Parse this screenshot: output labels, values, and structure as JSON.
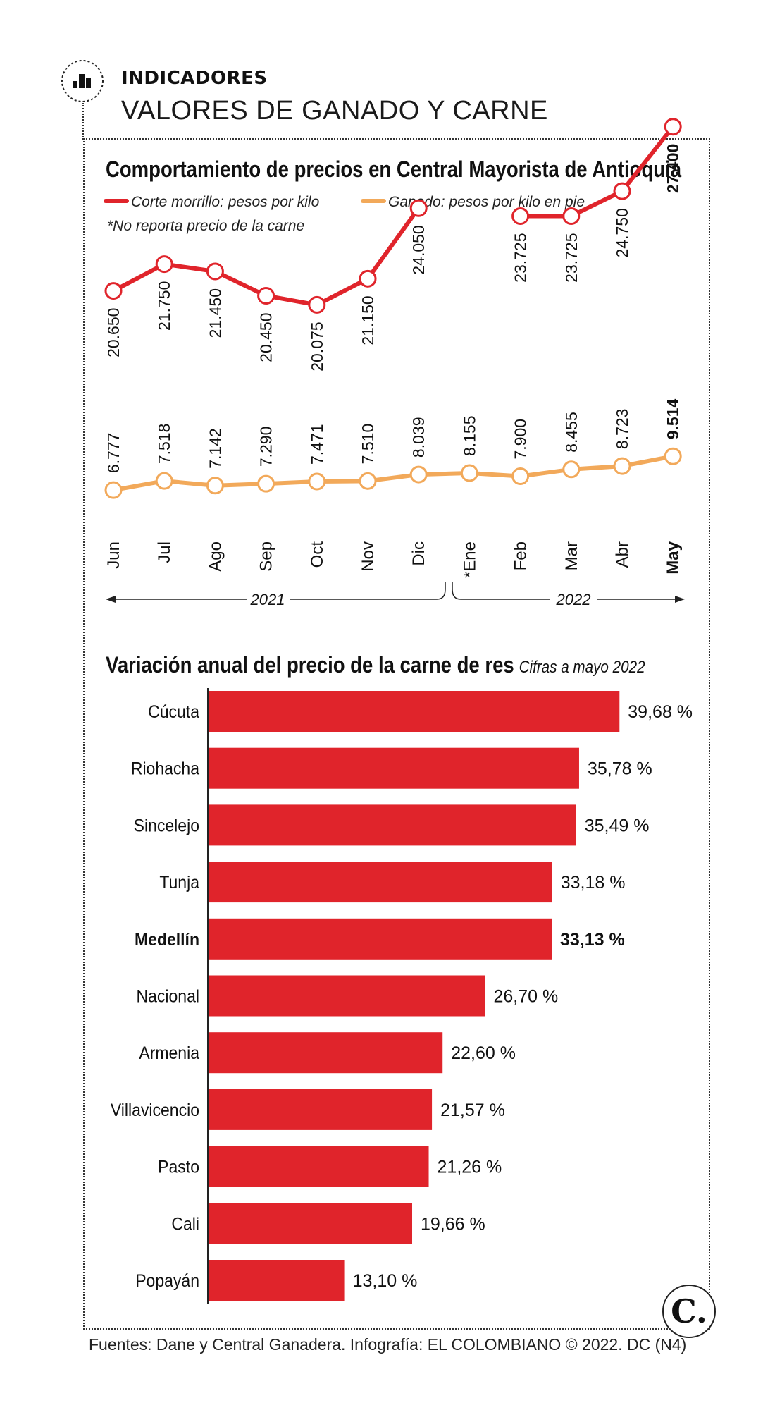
{
  "kicker": "INDICADORES",
  "headline": "VALORES DE GANADO Y CARNE",
  "source": "Fuentes: Dane y Central Ganadera. Infografía: EL COLOMBIANO © 2022. DC (N4)",
  "logo": "C.",
  "icon": "bar-chart-icon",
  "colors": {
    "red": "#e0242b",
    "orange": "#f2a95a",
    "bar": "#e0242b"
  },
  "chart_data": [
    {
      "type": "line",
      "title": "Comportamiento de precios en Central Mayorista de Antioquia",
      "note": "*No reporta precio de la carne",
      "categories": [
        "Jun",
        "Jul",
        "Ago",
        "Sep",
        "Oct",
        "Nov",
        "Dic",
        "*Ene",
        "Feb",
        "Mar",
        "Abr",
        "May"
      ],
      "years": [
        {
          "label": "2021",
          "from": "Jun",
          "to": "Dic"
        },
        {
          "label": "2022",
          "from": "*Ene",
          "to": "May"
        }
      ],
      "series": [
        {
          "name": "Corte morrillo: pesos por kilo",
          "color": "#e0242b",
          "values": [
            20650,
            21750,
            21450,
            20450,
            20075,
            21150,
            24050,
            null,
            23725,
            23725,
            24750,
            27400
          ],
          "labels": [
            "20.650",
            "21.750",
            "21.450",
            "20.450",
            "20.075",
            "21.150",
            "24.050",
            "",
            "23.725",
            "23.725",
            "24.750",
            "27.400"
          ]
        },
        {
          "name": "Ganado: pesos por kilo en pie",
          "color": "#f2a95a",
          "values": [
            6777,
            7518,
            7142,
            7290,
            7471,
            7510,
            8039,
            8155,
            7900,
            8455,
            8723,
            9514
          ],
          "labels": [
            "6.777",
            "7.518",
            "7.142",
            "7.290",
            "7.471",
            "7.510",
            "8.039",
            "8.155",
            "7.900",
            "8.455",
            "8.723",
            "9.514"
          ]
        }
      ]
    },
    {
      "type": "bar",
      "orientation": "horizontal",
      "title": "Variación anual del precio de la carne de res",
      "subtitle": "Cifras a mayo 2022",
      "highlight": "Medellín",
      "categories": [
        "Cúcuta",
        "Riohacha",
        "Sincelejo",
        "Tunja",
        "Medellín",
        "Nacional",
        "Armenia",
        "Villavicencio",
        "Pasto",
        "Cali",
        "Popayán"
      ],
      "values": [
        39.68,
        35.78,
        35.49,
        33.18,
        33.13,
        26.7,
        22.6,
        21.57,
        21.26,
        19.66,
        13.1
      ],
      "labels": [
        "39,68 %",
        "35,78 %",
        "35,49 %",
        "33,18 %",
        "33,13 %",
        "26,70 %",
        "22,60 %",
        "21,57 %",
        "21,26 %",
        "19,66 %",
        "13,10 %"
      ]
    }
  ]
}
